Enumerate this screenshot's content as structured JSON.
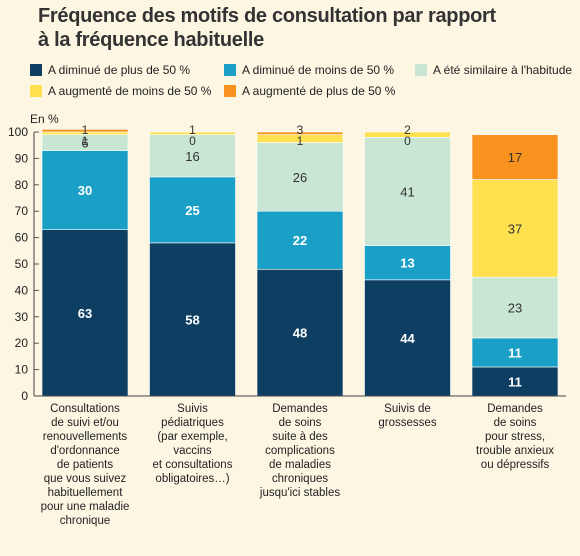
{
  "title_lines": [
    "Fréquence des motifs de consultation par rapport",
    "à la fréquence habituelle"
  ],
  "legend": [
    {
      "name": "A diminué de plus de 50 %",
      "color": "#0e3f63"
    },
    {
      "name": "A diminué de moins de 50 %",
      "color": "#1a9fc7"
    },
    {
      "name": "A été similaire à l'habitude",
      "color": "#c8e6d3"
    },
    {
      "name": "A augmenté de moins de 50 %",
      "color": "#ffe04f"
    },
    {
      "name": "A augmenté de plus de 50 %",
      "color": "#f7931e"
    }
  ],
  "chart_data": {
    "type": "bar",
    "stacked": true,
    "unit": "En %",
    "ylim": [
      0,
      100
    ],
    "yticks": [
      0,
      10,
      20,
      30,
      40,
      50,
      60,
      70,
      80,
      90,
      100
    ],
    "categories": [
      "Consultations de suivi et/ou renouvellements d'ordonnance de patients que vous suivez habituellement pour une maladie chronique",
      "Suivis pédiatriques (par exemple, vaccins et consultations obligatoires…)",
      "Demandes de soins suite à des complications de maladies chroniques jusqu'ici stables",
      "Suivis de grossesses",
      "Demandes de soins pour stress, trouble anxieux ou dépressifs"
    ],
    "category_lines": [
      [
        "Consultations",
        "de suivi et/ou",
        "renouvellements",
        "d'ordonnance",
        "de patients",
        "que vous suivez",
        "habituellement",
        "pour une maladie",
        "chronique"
      ],
      [
        "Suivis",
        "pédiatriques",
        "(par exemple,",
        "vaccins",
        "et consultations",
        "obligatoires…)"
      ],
      [
        "Demandes",
        "de soins",
        "suite à des",
        "complications",
        "de maladies",
        "chroniques",
        "jusqu'ici stables"
      ],
      [
        "Suivis de",
        "grossesses"
      ],
      [
        "Demandes",
        "de soins",
        "pour stress,",
        "trouble anxieux",
        "ou dépressifs"
      ]
    ],
    "series": [
      {
        "name": "A diminué de plus de 50 %",
        "values": [
          63,
          58,
          48,
          44,
          11
        ]
      },
      {
        "name": "A diminué de moins de 50 %",
        "values": [
          30,
          25,
          22,
          13,
          11
        ]
      },
      {
        "name": "A été similaire à l'habitude",
        "values": [
          6,
          16,
          26,
          41,
          23
        ]
      },
      {
        "name": "A augmenté de moins de 50 %",
        "values": [
          1,
          1,
          3,
          2,
          37
        ]
      },
      {
        "name": "A augmenté de plus de 50 %",
        "values": [
          1,
          0,
          1,
          0,
          17
        ]
      }
    ]
  }
}
